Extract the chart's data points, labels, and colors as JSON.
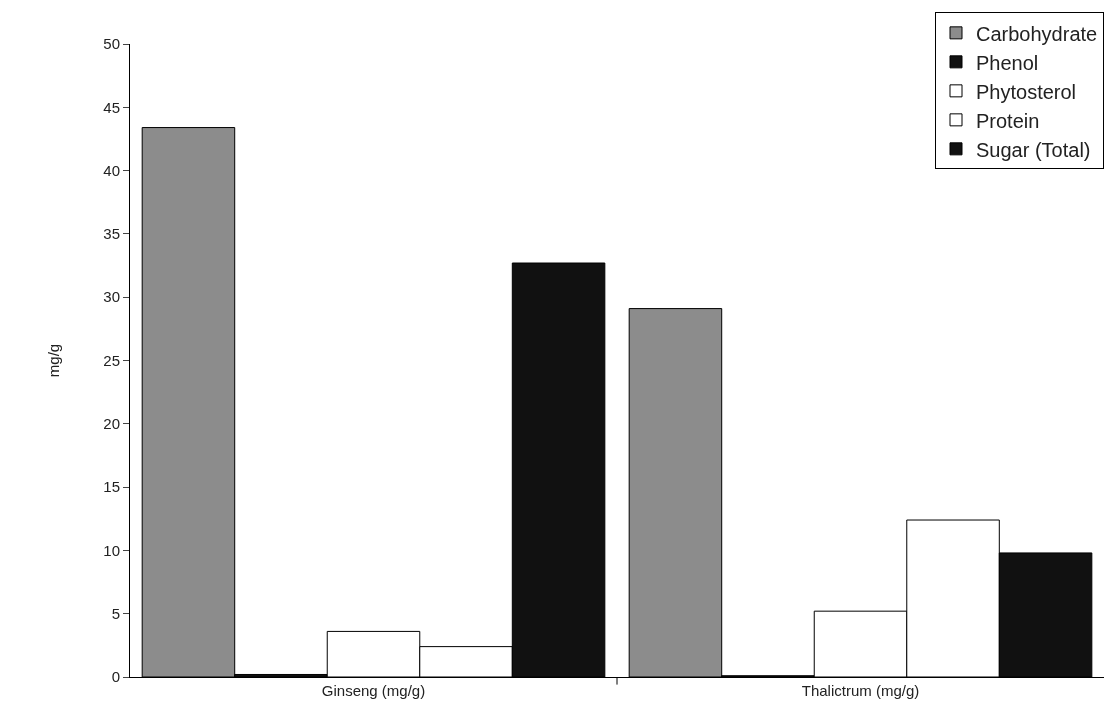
{
  "chart_data": {
    "type": "bar",
    "ylabel": "mg/g",
    "categories": [
      "Ginseng (mg/g)",
      "Thalictrum (mg/g)"
    ],
    "series": [
      {
        "name": "Carbohydrate",
        "color": "#8c8c8c",
        "values": [
          43.4,
          29.1
        ]
      },
      {
        "name": "Phenol",
        "color": "#111111",
        "values": [
          0.2,
          0.1
        ]
      },
      {
        "name": "Phytosterol",
        "color": "#ffffff",
        "values": [
          3.6,
          5.2
        ]
      },
      {
        "name": "Protein",
        "color": "#ffffff",
        "values": [
          2.4,
          12.4
        ]
      },
      {
        "name": "Sugar (Total)",
        "color": "#111111",
        "values": [
          32.7,
          9.8
        ]
      }
    ],
    "ylim": [
      0,
      50
    ],
    "yticks": [
      0,
      5,
      10,
      15,
      20,
      25,
      30,
      35,
      40,
      45,
      50
    ],
    "grid": false,
    "legend": "top right"
  }
}
